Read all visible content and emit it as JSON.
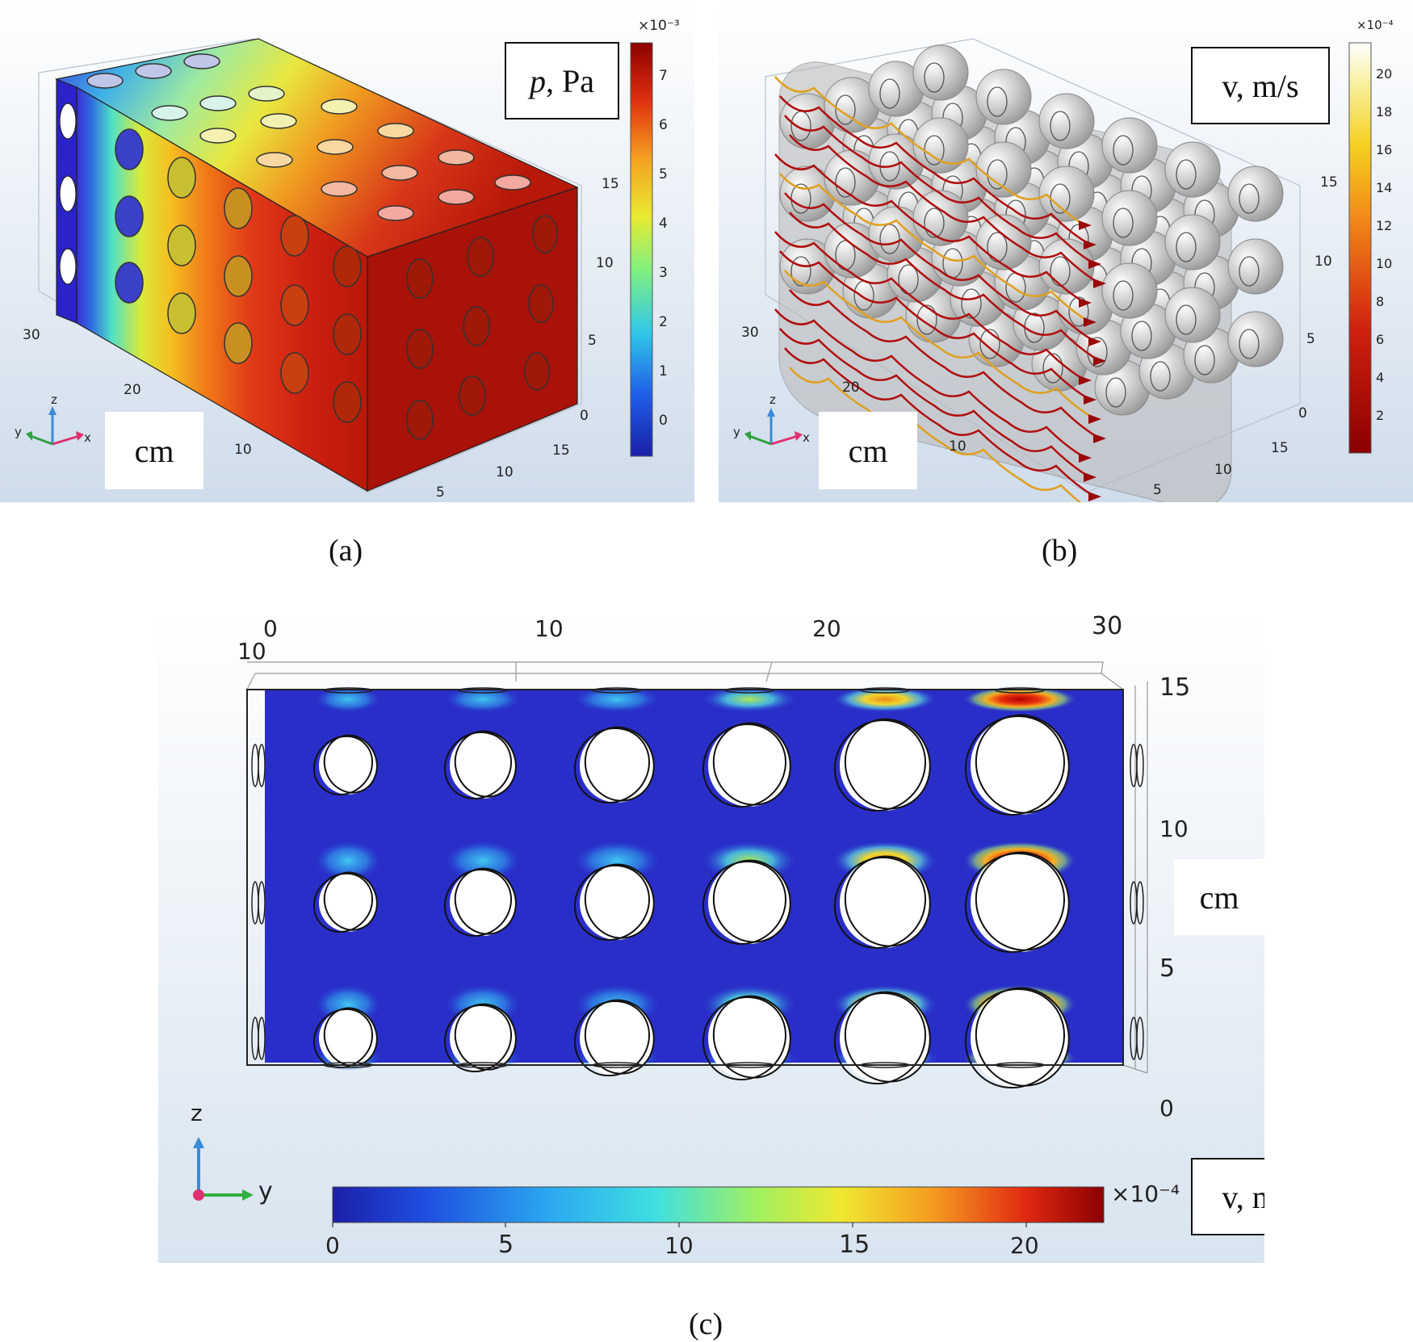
{
  "panels": {
    "a": {
      "caption": "(a)",
      "quantity_italic": "p",
      "quantity_rest": ", Pa",
      "unit": "cm",
      "colorbar": {
        "exponent": "×10⁻³",
        "ticks": [
          "7",
          "6",
          "5",
          "4",
          "3",
          "2",
          "1",
          "0"
        ]
      },
      "axis_ticks": {
        "left": [
          "30",
          "20",
          "10",
          "5"
        ],
        "right": [
          "15",
          "10",
          "5",
          "0"
        ],
        "front": [
          "15",
          "10",
          "5"
        ]
      },
      "axes_triad": {
        "x": "x",
        "y": "y",
        "z": "z"
      }
    },
    "b": {
      "caption": "(b)",
      "quantity": "v, m/s",
      "unit": "cm",
      "colorbar": {
        "exponent": "×10⁻⁴",
        "ticks": [
          "20",
          "18",
          "16",
          "14",
          "12",
          "10",
          "8",
          "6",
          "4",
          "2"
        ]
      },
      "axis_ticks": {
        "left": [
          "30",
          "20",
          "10",
          "5"
        ],
        "right": [
          "15",
          "10",
          "5",
          "0"
        ],
        "front": [
          "15",
          "10",
          "5"
        ]
      },
      "axes_triad": {
        "x": "x",
        "y": "y",
        "z": "z"
      }
    },
    "c": {
      "caption": "(c)",
      "quantity": "v, m/s",
      "unit": "cm",
      "top_ticks": [
        "0",
        "10",
        "20",
        "30"
      ],
      "top_left": "10",
      "right_ticks": [
        "15",
        "10",
        "5",
        "0"
      ],
      "colorbar": {
        "exponent": "×10⁻⁴",
        "ticks": [
          "0",
          "5",
          "10",
          "15",
          "20"
        ]
      },
      "axes_triad": {
        "y": "y",
        "z": "z"
      }
    }
  },
  "colors": {
    "jet_low": "#1b1fa8",
    "jet_high": "#8b0000",
    "background": "#dfe9f3"
  }
}
